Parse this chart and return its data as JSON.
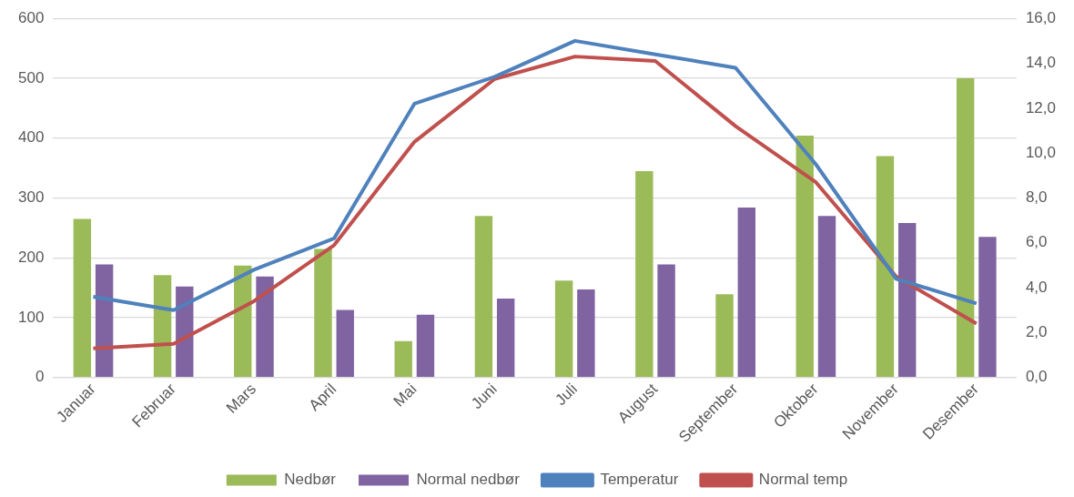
{
  "chart_data": {
    "type": "bar",
    "categories": [
      "Januar",
      "Februar",
      "Mars",
      "April",
      "Mai",
      "Juni",
      "Juli",
      "August",
      "September",
      "Oktober",
      "November",
      "Desember"
    ],
    "series": [
      {
        "name": "Nedbør",
        "color": "#9bbb59",
        "values": [
          265,
          171,
          187,
          215,
          61,
          270,
          162,
          345,
          139,
          404,
          370,
          500
        ]
      },
      {
        "name": "Normal nedbør",
        "color": "#8064a2",
        "values": [
          189,
          152,
          169,
          113,
          105,
          132,
          147,
          189,
          284,
          270,
          258,
          235
        ]
      },
      {
        "name": "Temperatur",
        "type": "line",
        "axis": "y2",
        "color": "#4f81bd",
        "values": [
          3.6,
          3.0,
          4.8,
          6.2,
          12.2,
          13.4,
          15.0,
          14.4,
          13.8,
          9.5,
          4.4,
          3.3
        ]
      },
      {
        "name": "Normal temp",
        "type": "line",
        "axis": "y2",
        "color": "#c0504d",
        "values": [
          1.3,
          1.5,
          3.4,
          5.9,
          10.5,
          13.3,
          14.3,
          14.1,
          11.2,
          8.7,
          4.5,
          2.4
        ]
      }
    ],
    "ylim": [
      0,
      600
    ],
    "yticks": [
      0,
      100,
      200,
      300,
      400,
      500,
      600
    ],
    "y2lim": [
      0,
      16
    ],
    "y2ticks": [
      {
        "value": 0,
        "label": "0,0"
      },
      {
        "value": 2,
        "label": "2,0"
      },
      {
        "value": 4,
        "label": "4,0"
      },
      {
        "value": 6,
        "label": "6,0"
      },
      {
        "value": 8,
        "label": "8,0"
      },
      {
        "value": 10,
        "label": "10,0"
      },
      {
        "value": 12,
        "label": "12,0"
      },
      {
        "value": 14,
        "label": "14,0"
      },
      {
        "value": 16,
        "label": "16,0"
      }
    ],
    "grid": "y",
    "legend": "bottom",
    "marker": "none"
  }
}
